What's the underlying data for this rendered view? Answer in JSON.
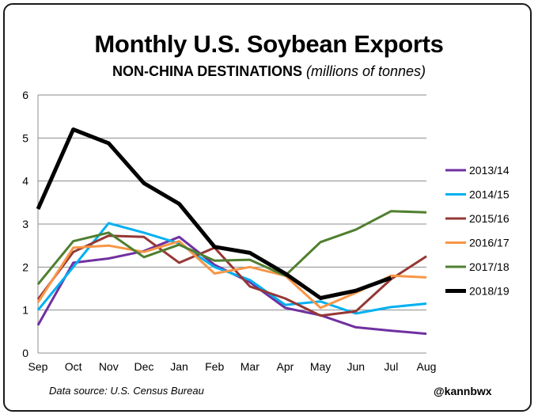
{
  "title": "Monthly U.S. Soybean Exports",
  "subtitle": "NON-CHINA DESTINATIONS",
  "subtitle_unit": "(millions of tonnes)",
  "source": "Data source: U.S. Census Bureau",
  "handle": "@kannbwx",
  "chart_data": {
    "type": "line",
    "title": "Monthly U.S. Soybean Exports",
    "subtitle": "NON-CHINA DESTINATIONS (millions of tonnes)",
    "xlabel": "",
    "ylabel": "",
    "ylim": [
      0,
      6
    ],
    "yticks": [
      0,
      1,
      2,
      3,
      4,
      5,
      6
    ],
    "grid": "horizontal",
    "legend": "right",
    "categories": [
      "Sep",
      "Oct",
      "Nov",
      "Dec",
      "Jan",
      "Feb",
      "Mar",
      "Apr",
      "May",
      "Jun",
      "Jul",
      "Aug"
    ],
    "series": [
      {
        "name": "2013/14",
        "color": "#7030a0",
        "width": 3,
        "values": [
          0.65,
          2.1,
          2.2,
          2.37,
          2.7,
          2.05,
          1.65,
          1.05,
          0.88,
          0.6,
          0.52,
          0.45
        ]
      },
      {
        "name": "2014/15",
        "color": "#00b0f0",
        "width": 3,
        "values": [
          1.0,
          2.0,
          3.02,
          2.8,
          2.55,
          2.0,
          1.7,
          1.12,
          1.2,
          0.92,
          1.07,
          1.15
        ]
      },
      {
        "name": "2015/16",
        "color": "#953735",
        "width": 3,
        "values": [
          1.25,
          2.35,
          2.73,
          2.7,
          2.1,
          2.45,
          1.55,
          1.27,
          0.87,
          0.97,
          1.72,
          2.25
        ]
      },
      {
        "name": "2016/17",
        "color": "#f79646",
        "width": 3,
        "values": [
          1.18,
          2.45,
          2.5,
          2.35,
          2.6,
          1.85,
          2.0,
          1.8,
          1.05,
          1.4,
          1.8,
          1.76
        ]
      },
      {
        "name": "2017/18",
        "color": "#4f7f2f",
        "width": 3,
        "values": [
          1.6,
          2.6,
          2.8,
          2.23,
          2.52,
          2.15,
          2.17,
          1.8,
          2.58,
          2.87,
          3.3,
          3.27
        ]
      },
      {
        "name": "2018/19",
        "color": "#000000",
        "width": 5,
        "values": [
          3.35,
          5.2,
          4.88,
          3.95,
          3.47,
          2.47,
          2.33,
          1.85,
          1.28,
          1.45,
          1.75,
          null
        ]
      }
    ]
  }
}
